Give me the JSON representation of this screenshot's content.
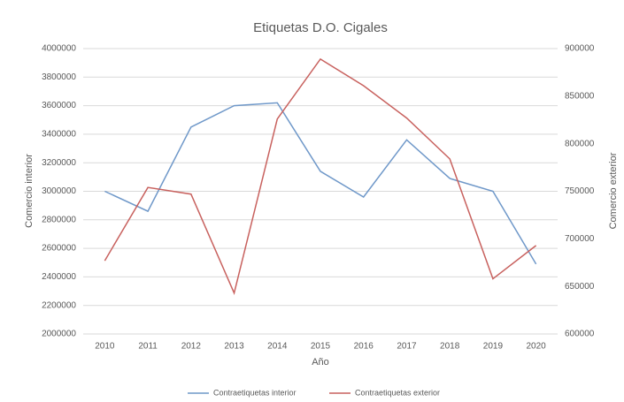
{
  "chart_data": {
    "type": "line",
    "title": "Etiquetas D.O. Cigales",
    "x_label": "Año",
    "y_label": "Comercio interior",
    "y2_label": "Comercio exterior",
    "categories": [
      "2010",
      "2011",
      "2012",
      "2013",
      "2014",
      "2015",
      "2016",
      "2017",
      "2018",
      "2019",
      "2020"
    ],
    "series": [
      {
        "name": "Contraetiquetas interior",
        "color": "#6f98c9",
        "values": [
          3000000,
          2860000,
          3450000,
          3600000,
          3620000,
          3140000,
          2960000,
          3360000,
          3090000,
          3000000,
          2490000
        ]
      },
      {
        "name": "Contraetiquetas exterior",
        "color": "#c8615e",
        "axis": "y2",
        "values": [
          677000,
          754000,
          747000,
          643000,
          826000,
          889000,
          861000,
          827000,
          784000,
          658000,
          693000
        ]
      }
    ],
    "ylim": [
      2000000,
      4000000
    ],
    "yticks": [
      2000000,
      2200000,
      2400000,
      2600000,
      2800000,
      3000000,
      3200000,
      3400000,
      3600000,
      3800000,
      4000000
    ],
    "y2lim": [
      600000,
      900000
    ],
    "y2ticks": [
      600000,
      650000,
      700000,
      750000,
      800000,
      850000,
      900000
    ],
    "grid": true,
    "legend": "bottom"
  }
}
